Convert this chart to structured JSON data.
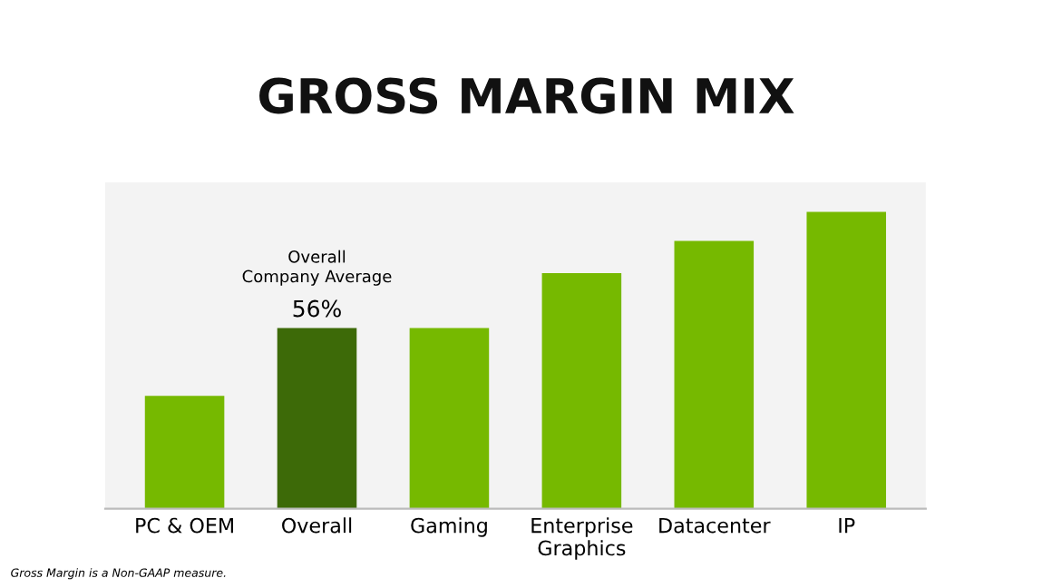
{
  "chart_data": {
    "type": "bar",
    "title": "GROSS MARGIN MIX",
    "categories": [
      "PC & OEM",
      "Overall",
      "Gaming",
      "Enterprise\nGraphics",
      "Datacenter",
      "IP"
    ],
    "values": [
      35,
      56,
      56,
      73,
      83,
      92
    ],
    "colors": [
      "#76b900",
      "#3d6a08",
      "#76b900",
      "#76b900",
      "#76b900",
      "#76b900"
    ],
    "value_labels": [
      null,
      "56%",
      null,
      null,
      null,
      null
    ],
    "annotations": [
      {
        "text": "Overall\nCompany Average",
        "x": "Overall",
        "y": 56
      },
      "Gross Margin is a Non-GAAP measure."
    ]
  }
}
